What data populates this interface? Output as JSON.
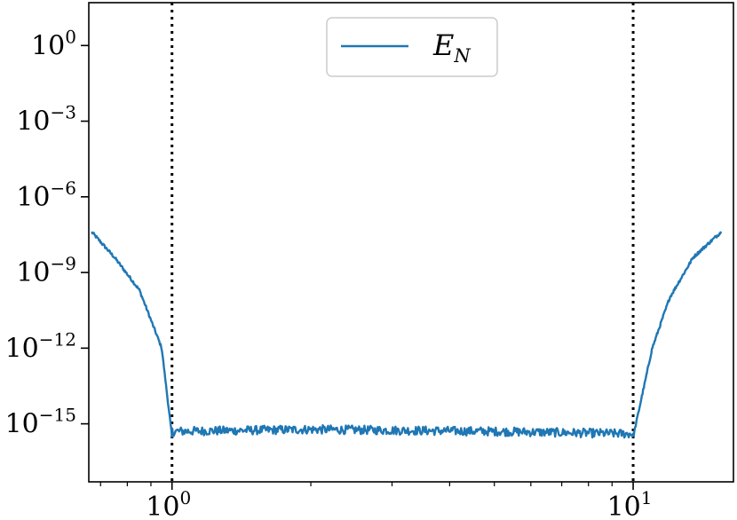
{
  "chart_data": {
    "type": "line",
    "x_scale": "log",
    "y_scale": "log",
    "xlim": [
      0.66,
      16.5
    ],
    "ylim": [
      5e-18,
      50.0
    ],
    "x_ticks": [
      {
        "value": 1,
        "base": "10",
        "exp": "0"
      },
      {
        "value": 10,
        "base": "10",
        "exp": "1"
      }
    ],
    "y_ticks": [
      {
        "value": 1,
        "base": "10",
        "exp": "0"
      },
      {
        "value": 0.001,
        "base": "10",
        "exp": "−3"
      },
      {
        "value": 1e-06,
        "base": "10",
        "exp": "−6"
      },
      {
        "value": 1e-09,
        "base": "10",
        "exp": "−9"
      },
      {
        "value": 1e-12,
        "base": "10",
        "exp": "−12"
      },
      {
        "value": 1e-15,
        "base": "10",
        "exp": "−15"
      }
    ],
    "vlines": [
      {
        "x": 1,
        "style": "dotted",
        "color": "#000000"
      },
      {
        "x": 10,
        "style": "dotted",
        "color": "#000000"
      }
    ],
    "grid": false,
    "legend": {
      "placement": "top-center",
      "entries": [
        {
          "label": "E",
          "sub": "N"
        }
      ]
    },
    "series": [
      {
        "color": "#1f77b4",
        "left_branch": {
          "x": [
            0.67,
            0.75,
            0.85,
            0.95,
            1.0
          ],
          "y": [
            4e-08,
            4e-09,
            2e-10,
            1e-12,
            3e-16
          ]
        },
        "plateau": {
          "x": [
            1.0,
            2.0,
            5.0,
            10.0
          ],
          "y": [
            5e-16,
            6e-16,
            5e-16,
            4e-16
          ]
        },
        "right_branch": {
          "x": [
            10.0,
            11.0,
            12.0,
            13.5,
            15.5
          ],
          "y": [
            3e-16,
            1e-12,
            1e-10,
            4e-09,
            4e-08
          ]
        }
      }
    ]
  }
}
